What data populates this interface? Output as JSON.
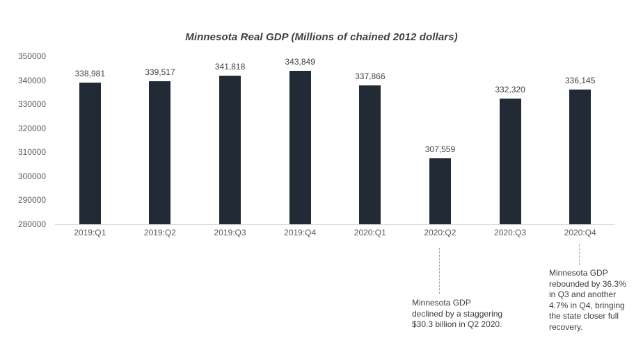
{
  "chart_data": {
    "type": "bar",
    "title": "Minnesota Real GDP (Millions of chained 2012 dollars)",
    "categories": [
      "2019:Q1",
      "2019:Q2",
      "2019:Q3",
      "2019:Q4",
      "2020:Q1",
      "2020:Q2",
      "2020:Q3",
      "2020:Q4"
    ],
    "values": [
      338981,
      339517,
      341818,
      343849,
      337866,
      307559,
      332320,
      336145
    ],
    "value_labels": [
      "338,981",
      "339,517",
      "341,818",
      "343,849",
      "337,866",
      "307,559",
      "332,320",
      "336,145"
    ],
    "xlabel": "",
    "ylabel": "",
    "ylim": [
      280000,
      350000
    ],
    "yticks": [
      280000,
      290000,
      300000,
      310000,
      320000,
      330000,
      340000,
      350000
    ],
    "ytick_labels": [
      "280000",
      "290000",
      "300000",
      "310000",
      "320000",
      "330000",
      "340000",
      "350000"
    ],
    "grid": false,
    "legend": "none",
    "annotations": [
      {
        "target_category": "2020:Q2",
        "text": "Minnesota GDP\ndeclined by a staggering\n$30.3 billion in Q2 2020."
      },
      {
        "target_category": "2020:Q4",
        "text": "Minnesota GDP\nrebounded by 36.3%\nin Q3 and another\n4.7% in Q4, bringing\nthe state closer full\nrecovery."
      }
    ]
  },
  "colors": {
    "bar": "#222A35",
    "title_text": "#404040",
    "axis_text": "#595959",
    "data_label_text": "#404040",
    "annotation_text": "#3d3d3d",
    "axis_line": "#d9d9d9",
    "annotation_leader_line": "#a6a6a6",
    "background": "#ffffff"
  }
}
